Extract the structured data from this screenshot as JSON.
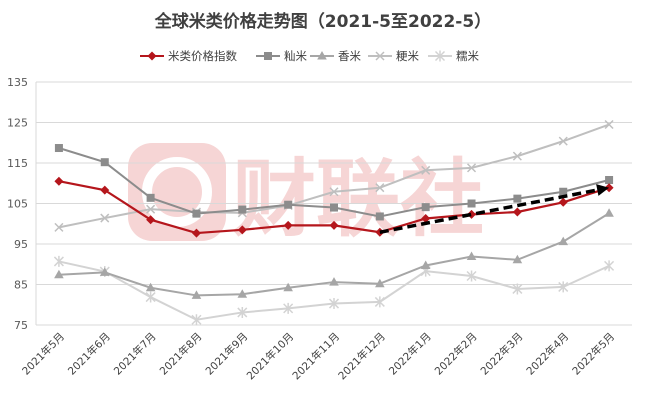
{
  "chart_data": {
    "type": "line",
    "title": "全球米类价格走势图（2021-5至2022-5）",
    "watermark": "财联社",
    "categories": [
      "2021年5月",
      "2021年6月",
      "2021年7月",
      "2021年8月",
      "2021年9月",
      "2021年10月",
      "2021年11月",
      "2021年12月",
      "2022年1月",
      "2022年2月",
      "2022年3月",
      "2022年4月",
      "2022年5月"
    ],
    "ylim": [
      75,
      135
    ],
    "yticks": [
      75,
      85,
      95,
      105,
      115,
      125,
      135
    ],
    "grid": true,
    "legend_position": "top",
    "series": [
      {
        "name": "米类价格指数",
        "color": "#b5161c",
        "marker": "diamond",
        "values": [
          110.5,
          108.3,
          101.0,
          97.7,
          98.5,
          99.6,
          99.6,
          97.9,
          101.3,
          102.3,
          102.9,
          105.3,
          108.9
        ]
      },
      {
        "name": "籼米",
        "color": "#8c8c8c",
        "marker": "square",
        "values": [
          118.7,
          115.2,
          106.4,
          102.5,
          103.5,
          104.7,
          104.0,
          101.8,
          104.1,
          105.0,
          106.2,
          107.9,
          110.8
        ]
      },
      {
        "name": "香米",
        "color": "#a6a6a6",
        "marker": "triangle",
        "values": [
          87.4,
          88.0,
          84.2,
          82.3,
          82.6,
          84.2,
          85.6,
          85.2,
          89.7,
          91.9,
          91.1,
          95.6,
          102.6
        ]
      },
      {
        "name": "粳米",
        "color": "#bfbfbf",
        "marker": "x",
        "values": [
          99.1,
          101.4,
          103.6,
          102.9,
          102.7,
          104.5,
          107.9,
          108.9,
          113.2,
          113.8,
          116.7,
          120.4,
          124.5
        ]
      },
      {
        "name": "糯米",
        "color": "#d3d3d3",
        "marker": "star",
        "values": [
          90.7,
          88.2,
          81.9,
          76.3,
          78.1,
          79.1,
          80.3,
          80.7,
          88.3,
          87.1,
          83.9,
          84.4,
          89.6
        ]
      }
    ],
    "trend_arrow": {
      "from_index": 7,
      "from_value": 97.9,
      "to_index": 12,
      "to_value": 108.9,
      "color": "#000000"
    }
  }
}
